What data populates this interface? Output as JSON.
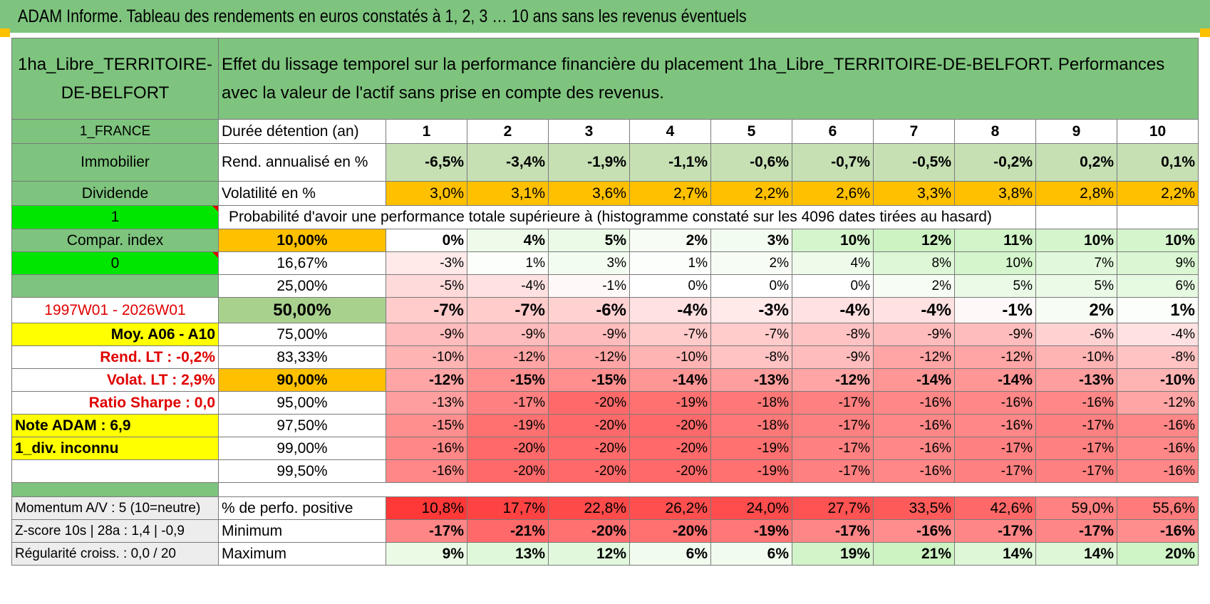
{
  "title": "ADAM Informe. Tableau des rendements en euros constatés à 1, 2, 3 … 10 ans sans les revenus éventuels",
  "header": {
    "asset_name": "1ha_Libre_TERRITOIRE-DE-BELFORT",
    "description": "Effet du lissage temporel sur la performance financière du placement 1ha_Libre_TERRITOIRE-DE-BELFORT. Performances avec la valeur de l'actif sans prise en compte des revenus."
  },
  "left_column": {
    "country": "1_FRANCE",
    "category": "Immobilier",
    "type": "Dividende",
    "flag1": "1",
    "compar_index": "Compar. index",
    "flag2": "0",
    "period": "1997W01 - 2026W01",
    "moy": "Moy. A06 - A10",
    "rend_lt": "Rend. LT :    -0,2%",
    "volat_lt": "Volat. LT :    2,9%",
    "sharpe": "Ratio Sharpe :    0,0",
    "note": "Note ADAM : 6,9",
    "div": "1_div. inconnu",
    "momentum": "Momentum A/V : 5 (10=neutre)",
    "zscore": "Z-score 10s | 28a : 1,4 | -0,9",
    "regularite": "Régularité croiss. : 0,0 / 20"
  },
  "labels": {
    "duree": "Durée détention (an)",
    "rend": "Rend. annualisé en %",
    "volat": "Volatilité en %",
    "proba": "Probabilité d'avoir une performance totale supérieure à (histogramme constaté sur les 4096 dates tirées au hasard)",
    "positive": "% de perfo. positive",
    "minimum": "Minimum",
    "maximum": "Maximum"
  },
  "years": [
    "1",
    "2",
    "3",
    "4",
    "5",
    "6",
    "7",
    "8",
    "9",
    "10"
  ],
  "rend": [
    "-6,5%",
    "-3,4%",
    "-1,9%",
    "-1,1%",
    "-0,6%",
    "-0,7%",
    "-0,5%",
    "-0,2%",
    "0,2%",
    "0,1%"
  ],
  "volat": [
    "3,0%",
    "3,1%",
    "3,6%",
    "2,7%",
    "2,2%",
    "2,6%",
    "3,3%",
    "3,8%",
    "2,8%",
    "2,2%"
  ],
  "percentiles": [
    {
      "p": "10,00%",
      "v": [
        "0%",
        "4%",
        "5%",
        "2%",
        "3%",
        "10%",
        "12%",
        "11%",
        "10%",
        "10%"
      ]
    },
    {
      "p": "16,67%",
      "v": [
        "-3%",
        "1%",
        "3%",
        "1%",
        "2%",
        "4%",
        "8%",
        "10%",
        "7%",
        "9%"
      ]
    },
    {
      "p": "25,00%",
      "v": [
        "-5%",
        "-4%",
        "-1%",
        "0%",
        "0%",
        "0%",
        "2%",
        "5%",
        "5%",
        "6%"
      ]
    },
    {
      "p": "50,00%",
      "v": [
        "-7%",
        "-7%",
        "-6%",
        "-4%",
        "-3%",
        "-4%",
        "-4%",
        "-1%",
        "2%",
        "1%"
      ]
    },
    {
      "p": "75,00%",
      "v": [
        "-9%",
        "-9%",
        "-9%",
        "-7%",
        "-7%",
        "-8%",
        "-9%",
        "-9%",
        "-6%",
        "-4%"
      ]
    },
    {
      "p": "83,33%",
      "v": [
        "-10%",
        "-12%",
        "-12%",
        "-10%",
        "-8%",
        "-9%",
        "-12%",
        "-12%",
        "-10%",
        "-8%"
      ]
    },
    {
      "p": "90,00%",
      "v": [
        "-12%",
        "-15%",
        "-15%",
        "-14%",
        "-13%",
        "-12%",
        "-14%",
        "-14%",
        "-13%",
        "-10%"
      ]
    },
    {
      "p": "95,00%",
      "v": [
        "-13%",
        "-17%",
        "-20%",
        "-19%",
        "-18%",
        "-17%",
        "-16%",
        "-16%",
        "-16%",
        "-12%"
      ]
    },
    {
      "p": "97,50%",
      "v": [
        "-15%",
        "-19%",
        "-20%",
        "-20%",
        "-18%",
        "-17%",
        "-16%",
        "-16%",
        "-17%",
        "-16%"
      ]
    },
    {
      "p": "99,00%",
      "v": [
        "-16%",
        "-20%",
        "-20%",
        "-20%",
        "-19%",
        "-17%",
        "-16%",
        "-17%",
        "-17%",
        "-16%"
      ]
    },
    {
      "p": "99,50%",
      "v": [
        "-16%",
        "-20%",
        "-20%",
        "-20%",
        "-19%",
        "-17%",
        "-16%",
        "-17%",
        "-17%",
        "-16%"
      ]
    }
  ],
  "positive": [
    "10,8%",
    "17,7%",
    "22,8%",
    "26,2%",
    "24,0%",
    "27,7%",
    "33,5%",
    "42,6%",
    "59,0%",
    "55,6%"
  ],
  "minimum": [
    "-17%",
    "-21%",
    "-20%",
    "-20%",
    "-19%",
    "-17%",
    "-16%",
    "-17%",
    "-17%",
    "-16%"
  ],
  "maximum": [
    "9%",
    "13%",
    "12%",
    "6%",
    "6%",
    "19%",
    "21%",
    "14%",
    "14%",
    "20%"
  ],
  "colors": {
    "title_green": "#7ec47e",
    "bright_green": "#00e600",
    "orange": "#ffc000",
    "yellow": "#ffff00",
    "red_text": "#e00000"
  }
}
